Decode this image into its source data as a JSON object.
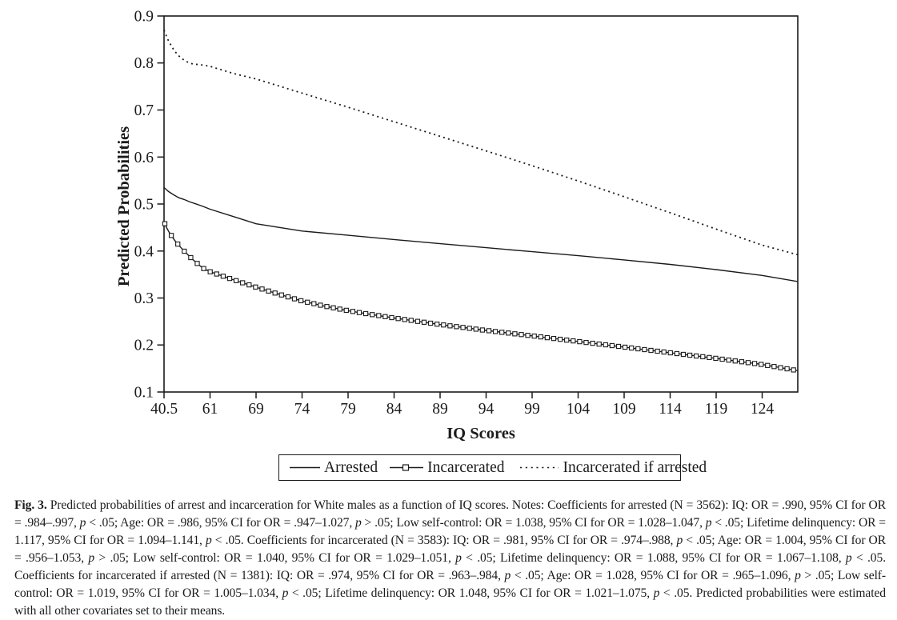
{
  "colors": {
    "ink": "#1b1b1b",
    "background": "#ffffff"
  },
  "figure": {
    "caption_label": "Fig. 3.",
    "caption_text": "Predicted probabilities of arrest and incarceration for White males as a function of IQ scores. Notes: Coefficients for arrested (N = 3562): IQ: OR = .990, 95% CI for OR = .984–.997, p < .05; Age: OR = .986, 95% CI for OR = .947–1.027, p > .05; Low self-control: OR = 1.038, 95% CI for OR = 1.028–1.047, p < .05; Lifetime delinquency: OR = 1.117, 95% CI for OR = 1.094–1.141, p < .05. Coefficients for incarcerated (N = 3583): IQ: OR = .981, 95% CI for OR = .974–.988, p < .05; Age: OR = 1.004, 95% CI for OR = .956–1.053, p > .05; Low self-control: OR = 1.040, 95% CI for OR = 1.029–1.051, p < .05; Lifetime delinquency: OR = 1.088, 95% CI for OR = 1.067–1.108, p < .05. Coefficients for incarcerated if arrested (N = 1381): IQ: OR = .974, 95% CI for OR = .963–.984, p < .05; Age: OR = 1.028, 95% CI for OR = .965–1.096, p > .05; Low self-control: OR = 1.019, 95% CI for OR = 1.005–1.034, p < .05; Lifetime delinquency: OR 1.048, 95% CI for OR = 1.021–1.075, p < .05. Predicted probabilities were estimated with all other covariates set to their means."
  },
  "chart_data": {
    "type": "line",
    "title": "",
    "xlabel": "IQ Scores",
    "ylabel": "Predicted Probabilities",
    "x_axis": {
      "tick_labels": [
        "40.5",
        "61",
        "69",
        "74",
        "79",
        "84",
        "89",
        "94",
        "99",
        "104",
        "109",
        "114",
        "119",
        "124"
      ],
      "tick_values": [
        40.5,
        61,
        69,
        74,
        79,
        84,
        89,
        94,
        99,
        104,
        109,
        114,
        119,
        124
      ],
      "max_value": 128,
      "note": "ticks evenly spaced despite unequal IQ intervals"
    },
    "y_axis": {
      "tick_labels": [
        "0.1",
        "0.2",
        "0.3",
        "0.4",
        "0.5",
        "0.6",
        "0.7",
        "0.8",
        "0.9"
      ],
      "tick_values": [
        0.1,
        0.2,
        0.3,
        0.4,
        0.5,
        0.6,
        0.7,
        0.8,
        0.9
      ],
      "range": [
        0.1,
        0.9
      ]
    },
    "legend": {
      "position": "bottom",
      "boxed": true
    },
    "grid": false,
    "series": [
      {
        "name": "Arrested",
        "style": "solid",
        "points": [
          [
            40.5,
            0.535
          ],
          [
            42.5,
            0.5265
          ],
          [
            44.5,
            0.5205
          ],
          [
            47,
            0.5135
          ],
          [
            49.5,
            0.5095
          ],
          [
            52,
            0.5045
          ],
          [
            54.5,
            0.5005
          ],
          [
            57,
            0.4965
          ],
          [
            61,
            0.489
          ],
          [
            65,
            0.4735
          ],
          [
            69,
            0.458
          ],
          [
            74,
            0.4425
          ],
          [
            79,
            0.4335
          ],
          [
            84,
            0.4245
          ],
          [
            89,
            0.4155
          ],
          [
            94,
            0.407
          ],
          [
            99,
            0.3985
          ],
          [
            104,
            0.39
          ],
          [
            109,
            0.381
          ],
          [
            114,
            0.3715
          ],
          [
            119,
            0.3605
          ],
          [
            124,
            0.348
          ],
          [
            127.9,
            0.335
          ]
        ]
      },
      {
        "name": "Incarcerated",
        "style": "solid-square-markers",
        "points": [
          [
            40.5,
            0.462
          ],
          [
            41.6,
            0.45
          ],
          [
            42.7,
            0.4405
          ],
          [
            43.9,
            0.432
          ],
          [
            45.1,
            0.4235
          ],
          [
            46.4,
            0.416
          ],
          [
            47.8,
            0.4085
          ],
          [
            49.2,
            0.401
          ],
          [
            50.7,
            0.394
          ],
          [
            52.3,
            0.3865
          ],
          [
            54,
            0.379
          ],
          [
            55.8,
            0.3715
          ],
          [
            57.8,
            0.3635
          ],
          [
            61,
            0.356
          ],
          [
            65,
            0.339
          ],
          [
            69,
            0.323
          ],
          [
            71.5,
            0.308
          ],
          [
            74,
            0.2935
          ],
          [
            76.5,
            0.2825
          ],
          [
            79,
            0.273
          ],
          [
            81.5,
            0.265
          ],
          [
            84,
            0.2575
          ],
          [
            89,
            0.2435
          ],
          [
            94,
            0.231
          ],
          [
            99,
            0.2195
          ],
          [
            104,
            0.2075
          ],
          [
            109,
            0.1955
          ],
          [
            114,
            0.1835
          ],
          [
            119,
            0.1715
          ],
          [
            124,
            0.1585
          ],
          [
            127.9,
            0.1455
          ]
        ]
      },
      {
        "name": "Incarcerated if arrested",
        "style": "dotted",
        "points": [
          [
            40.5,
            0.87
          ],
          [
            41.5,
            0.858
          ],
          [
            42.5,
            0.847
          ],
          [
            43.8,
            0.836
          ],
          [
            45,
            0.827
          ],
          [
            46.5,
            0.818
          ],
          [
            48,
            0.811
          ],
          [
            49.8,
            0.805
          ],
          [
            51.7,
            0.8
          ],
          [
            53.8,
            0.7975
          ],
          [
            56.5,
            0.7965
          ],
          [
            61,
            0.793
          ],
          [
            65,
            0.778
          ],
          [
            69,
            0.766
          ],
          [
            74,
            0.736
          ],
          [
            79,
            0.706
          ],
          [
            84,
            0.675
          ],
          [
            89,
            0.644
          ],
          [
            94,
            0.613
          ],
          [
            99,
            0.5815
          ],
          [
            104,
            0.549
          ],
          [
            109,
            0.5155
          ],
          [
            114,
            0.4815
          ],
          [
            119,
            0.4465
          ],
          [
            124,
            0.4125
          ],
          [
            127.9,
            0.392
          ]
        ]
      }
    ]
  }
}
